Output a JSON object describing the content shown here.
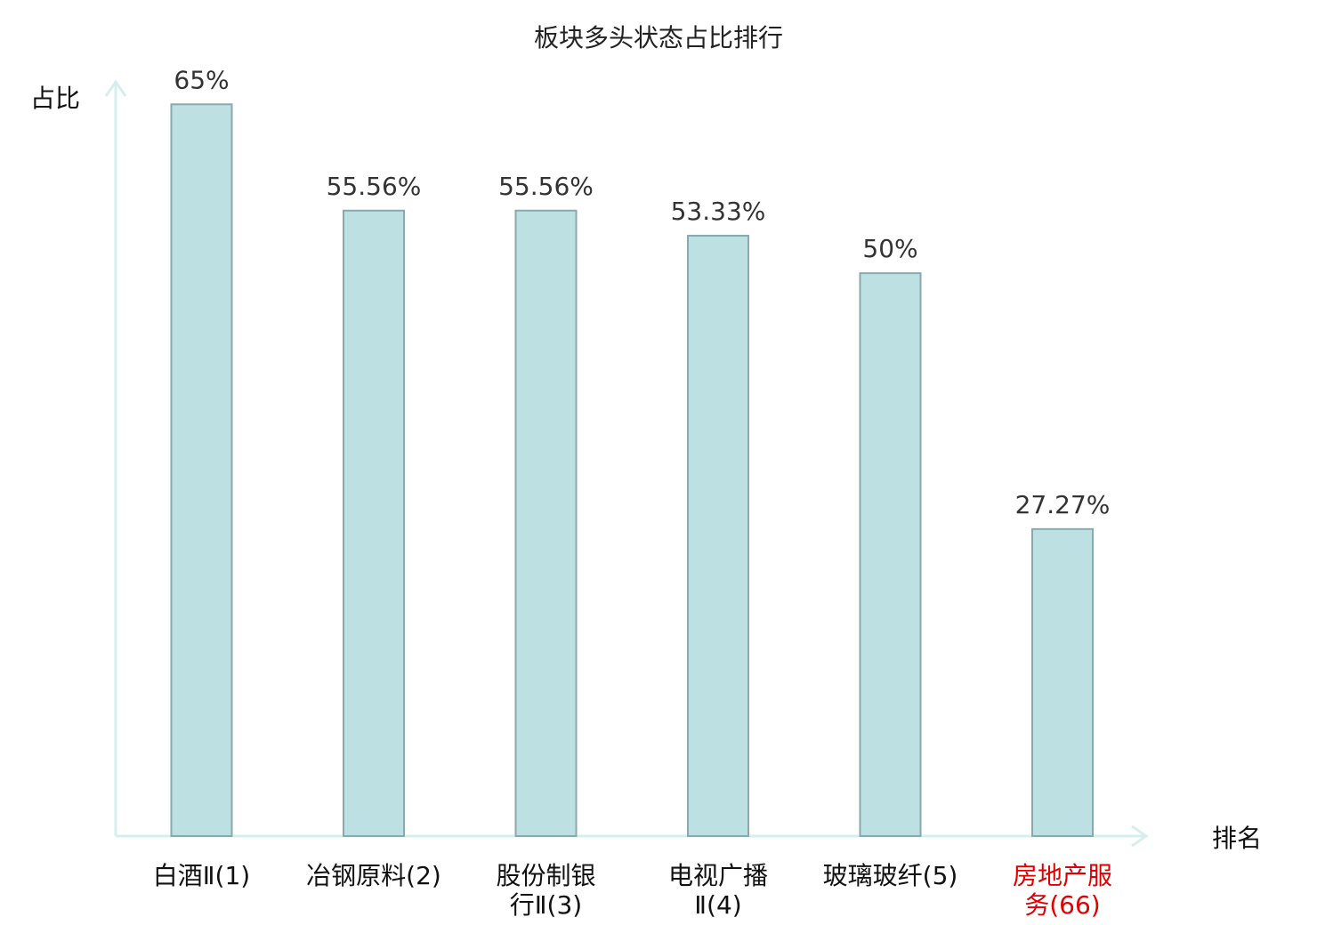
{
  "chart_data": {
    "type": "bar",
    "title": "板块多头状态占比排行",
    "ylabel": "占比",
    "xlabel": "排名",
    "categories": [
      [
        "白酒Ⅱ(1)"
      ],
      [
        "冶钢原料(2)"
      ],
      [
        "股份制银",
        "行Ⅱ(3)"
      ],
      [
        "电视广播",
        "Ⅱ(4)"
      ],
      [
        "玻璃玻纤(5)"
      ],
      [
        "房地产服",
        "务(66)"
      ]
    ],
    "values": [
      65,
      55.56,
      55.56,
      53.33,
      50,
      27.27
    ],
    "value_labels": [
      "65%",
      "55.56%",
      "55.56%",
      "53.33%",
      "50%",
      "27.27%"
    ],
    "highlight_index": 5,
    "ylim": [
      0,
      70
    ],
    "grid": false,
    "colors": {
      "bar_fill": "#bde0e3",
      "bar_stroke": "#8aa9ad",
      "axis": "#d6efec",
      "highlight_text": "#e00000",
      "text": "#111111"
    }
  }
}
